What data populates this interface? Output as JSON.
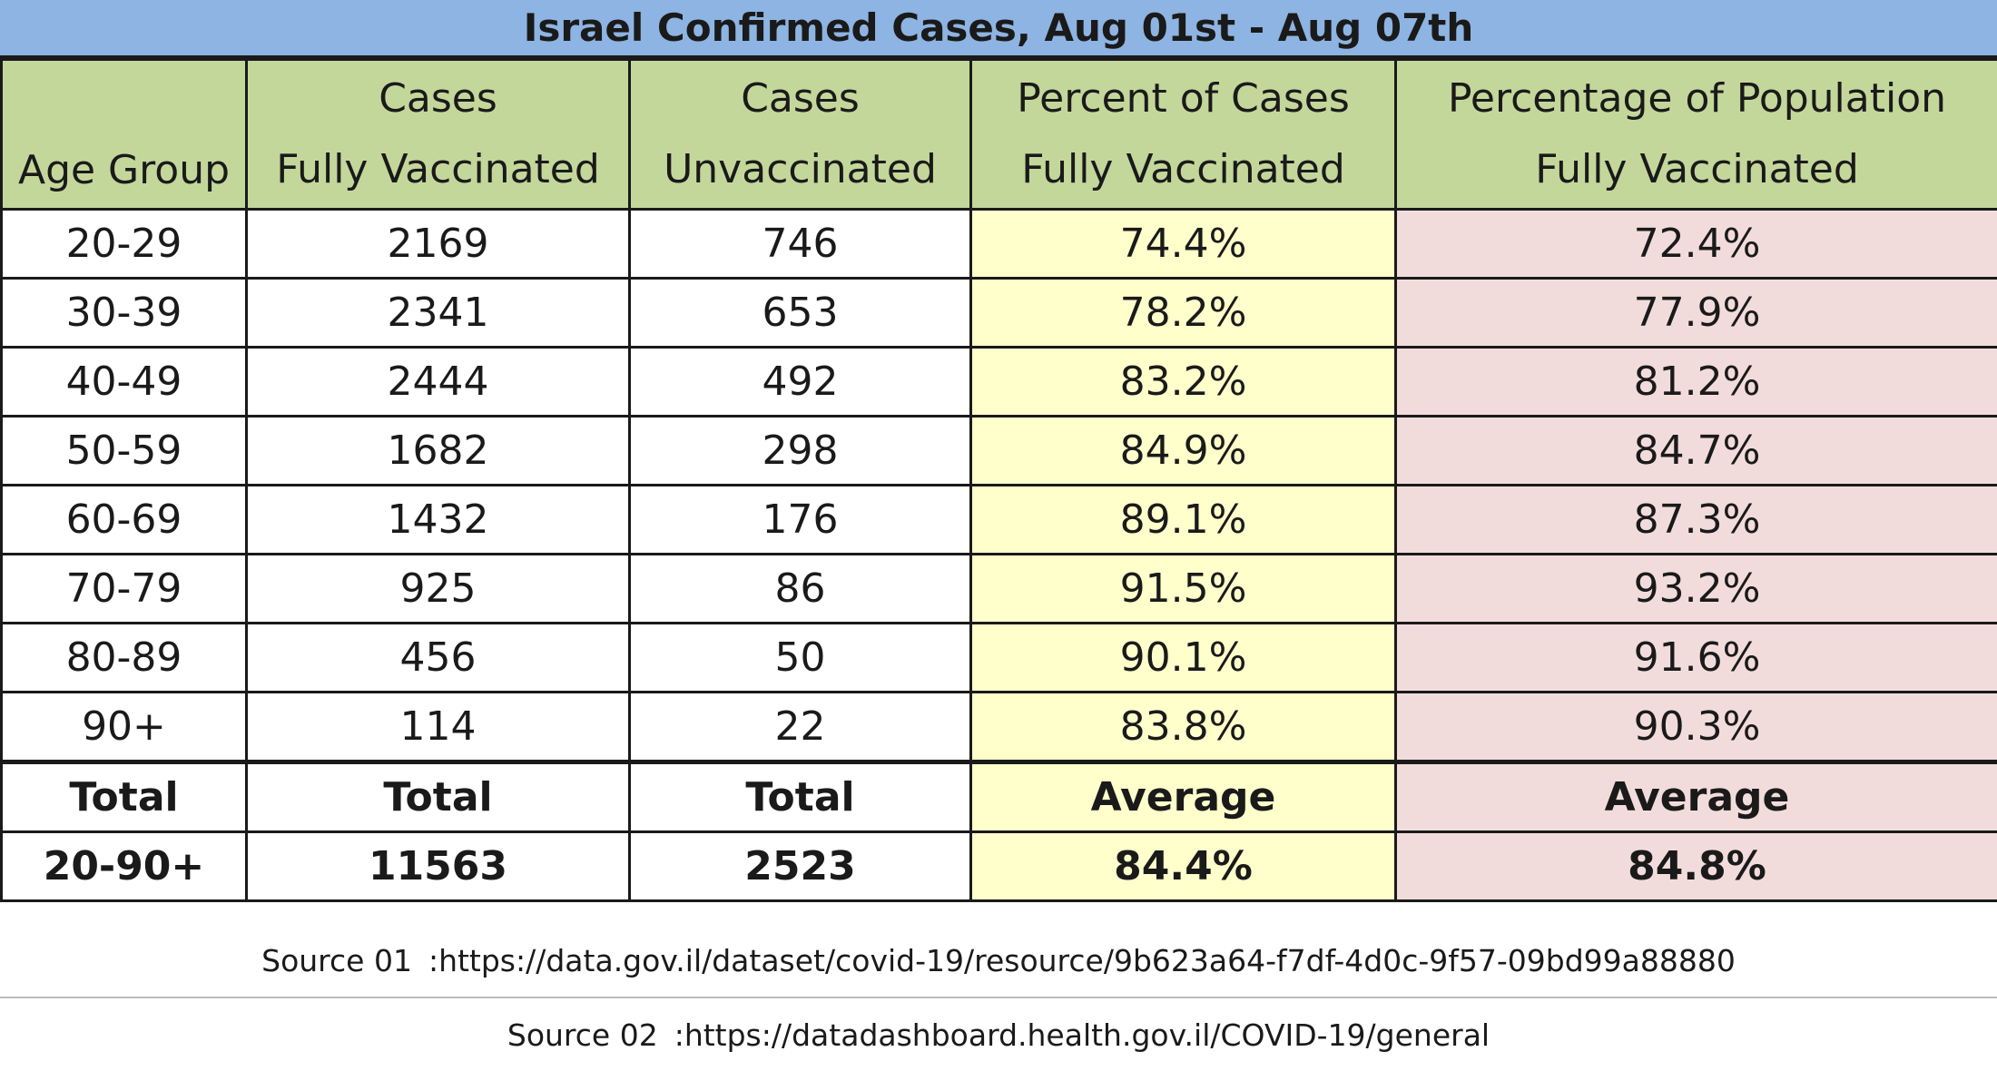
{
  "chart_data": {
    "type": "table",
    "title": "Israel Confirmed Cases, Aug 01st  - Aug 07th",
    "columns": [
      {
        "line1": "",
        "line2": "Age Group"
      },
      {
        "line1": "Cases",
        "line2": "Fully Vaccinated"
      },
      {
        "line1": "Cases",
        "line2": "Unvaccinated"
      },
      {
        "line1": "Percent of Cases",
        "line2": "Fully Vaccinated"
      },
      {
        "line1": "Percentage of Population",
        "line2": "Fully Vaccinated"
      }
    ],
    "rows": [
      [
        "20-29",
        "2169",
        "746",
        "74.4%",
        "72.4%"
      ],
      [
        "30-39",
        "2341",
        "653",
        "78.2%",
        "77.9%"
      ],
      [
        "40-49",
        "2444",
        "492",
        "83.2%",
        "81.2%"
      ],
      [
        "50-59",
        "1682",
        "298",
        "84.9%",
        "84.7%"
      ],
      [
        "60-69",
        "1432",
        "176",
        "89.1%",
        "87.3%"
      ],
      [
        "70-79",
        "925",
        "86",
        "91.5%",
        "93.2%"
      ],
      [
        "80-89",
        "456",
        "50",
        "90.1%",
        "91.6%"
      ],
      [
        "90+",
        "114",
        "22",
        "83.8%",
        "90.3%"
      ]
    ],
    "summary_labels": [
      "Total",
      "Total",
      "Total",
      "Average",
      "Average"
    ],
    "summary_values": [
      "20-90+",
      "11563",
      "2523",
      "84.4%",
      "84.8%"
    ]
  },
  "sources": [
    {
      "label": "Source 01",
      "url": ":https://data.gov.il/dataset/covid-19/resource/9b623a64-f7df-4d0c-9f57-09bd99a88880"
    },
    {
      "label": "Source 02",
      "url": ":https://datadashboard.health.gov.il/COVID-19/general"
    }
  ],
  "colors": {
    "title_bg": "#8db4e2",
    "header_bg": "#c4d79b",
    "percent_cases_bg": "#ffffcc",
    "percent_population_bg": "#f2dcdb"
  }
}
